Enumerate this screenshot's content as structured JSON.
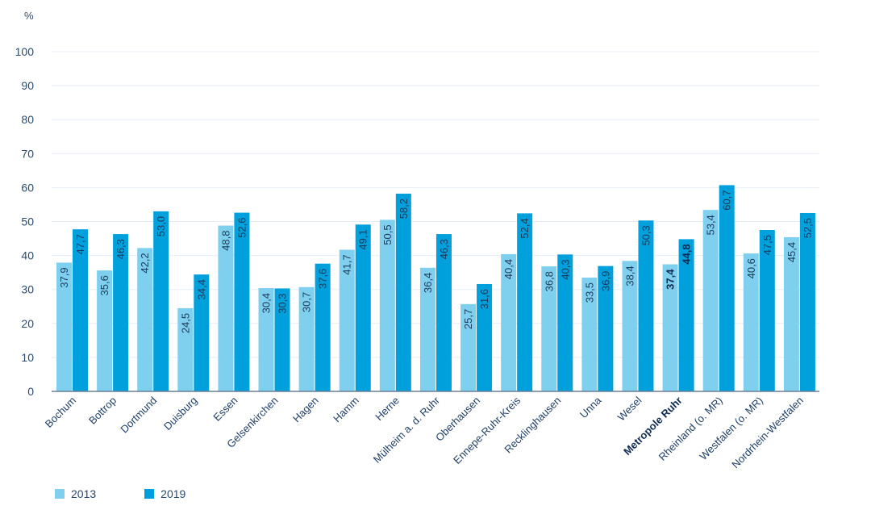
{
  "chart_data": {
    "type": "bar",
    "ylabel": "%",
    "ylim": [
      0,
      100
    ],
    "yticks": [
      0,
      10,
      20,
      30,
      40,
      50,
      60,
      70,
      80,
      90,
      100
    ],
    "grid": true,
    "legend_position": "bottom-left",
    "highlight_category": "Metropole Ruhr",
    "colors": {
      "2013": "#7fd0ee",
      "2019": "#00a0dc",
      "axis": "#6b7f96",
      "grid": "#e6eef5"
    },
    "categories": [
      "Bochum",
      "Bottrop",
      "Dortmund",
      "Duisburg",
      "Essen",
      "Gelsenkirchen",
      "Hagen",
      "Hamm",
      "Herne",
      "Mülheim a. d. Ruhr",
      "Oberhausen",
      "Ennepe-Ruhr-Kreis",
      "Recklinghausen",
      "Unna",
      "Wesel",
      "Metropole Ruhr",
      "Rheinland (o. MR)",
      "Westfalen (o. MR)",
      "Nordrhein-Westfalen"
    ],
    "series": [
      {
        "name": "2013",
        "values": [
          37.9,
          35.6,
          42.2,
          24.5,
          48.8,
          30.4,
          30.7,
          41.7,
          50.5,
          36.4,
          25.7,
          40.4,
          36.8,
          33.5,
          38.4,
          37.4,
          53.4,
          40.6,
          45.4
        ],
        "labels": [
          "37,9",
          "35,6",
          "42,2",
          "24,5",
          "48,8",
          "30,4",
          "30,7",
          "41,7",
          "50,5",
          "36,4",
          "25,7",
          "40,4",
          "36,8",
          "33,5",
          "38,4",
          "37,4",
          "53,4",
          "40,6",
          "45,4"
        ]
      },
      {
        "name": "2019",
        "values": [
          47.7,
          46.3,
          53.0,
          34.4,
          52.6,
          30.3,
          37.6,
          49.1,
          58.2,
          46.3,
          31.6,
          52.4,
          40.3,
          36.9,
          50.3,
          44.8,
          60.7,
          47.5,
          52.5
        ],
        "labels": [
          "47,7",
          "46,3",
          "53,0",
          "34,4",
          "52,6",
          "30,3",
          "37,6",
          "49,1",
          "58,2",
          "46,3",
          "31,6",
          "52,4",
          "40,3",
          "36,9",
          "50,3",
          "44,8",
          "60,7",
          "47,5",
          "52,5"
        ]
      }
    ]
  }
}
